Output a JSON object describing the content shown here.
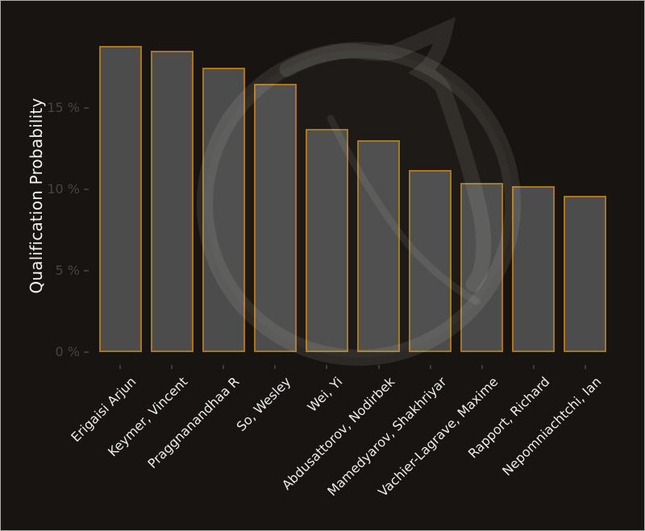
{
  "frame": {
    "background_color": "#171411",
    "border_color": "#adaca7"
  },
  "chart_data": {
    "type": "bar",
    "title": "",
    "xlabel": "",
    "ylabel": "Qualification Probability",
    "categories": [
      "Erigaisi Arjun",
      "Keymer, Vincent",
      "Praggnanandhaa R",
      "So, Wesley",
      "Wei, Yi",
      "Abdusattorov, Nodirbek",
      "Mamedyarov, Shakhriyar",
      "Vachier-Lagrave, Maxime",
      "Rapport, Richard",
      "Nepomniachtchi, Ian"
    ],
    "values": [
      18.8,
      18.5,
      17.5,
      16.5,
      13.7,
      13.0,
      11.2,
      10.4,
      10.2,
      9.6
    ],
    "unit": "%",
    "y_ticks": [
      {
        "value": 0,
        "label": "0 %"
      },
      {
        "value": 5,
        "label": "5 %"
      },
      {
        "value": 10,
        "label": "10 %"
      },
      {
        "value": 15,
        "label": "15 %"
      }
    ],
    "ylim": [
      0,
      20.6
    ],
    "grid": false,
    "legend": null,
    "bar_fill_color": "#4c4c4c",
    "bar_border_color": "#aa751c",
    "axis_text_color": "#eeedeb",
    "tick_text_color": "#48443f"
  },
  "watermark": {
    "name": "knight-logo-watermark",
    "stroke_color": "rgba(236,231,221,0.10)",
    "fill_color": "rgba(236,231,221,0.03)"
  }
}
